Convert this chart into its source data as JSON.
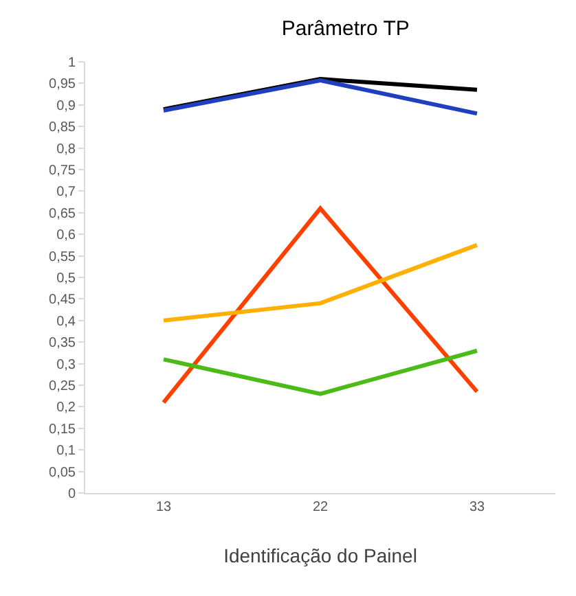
{
  "chart_data": {
    "type": "line",
    "title": "Parâmetro TP",
    "xlabel": "Identificação do Painel",
    "categories": [
      "13",
      "22",
      "33"
    ],
    "series": [
      {
        "color": "#000000",
        "values": [
          0.89,
          0.96,
          0.935
        ]
      },
      {
        "color": "#1f3fbf",
        "values": [
          0.887,
          0.957,
          0.88
        ]
      },
      {
        "color": "#ff4000",
        "values": [
          0.21,
          0.66,
          0.235
        ]
      },
      {
        "color": "#ffb000",
        "values": [
          0.4,
          0.44,
          0.575
        ]
      },
      {
        "color": "#4cbb17",
        "values": [
          0.31,
          0.23,
          0.33
        ]
      }
    ],
    "ylim": [
      0,
      1
    ],
    "yticks": [
      0,
      {
        "value": 0.05,
        "label": "0,05"
      },
      {
        "value": 0.1,
        "label": "0,1"
      },
      {
        "value": 0.15,
        "label": "0,15"
      },
      {
        "value": 0.2,
        "label": "0,2"
      },
      {
        "value": 0.25,
        "label": "0,25"
      },
      {
        "value": 0.3,
        "label": "0,3"
      },
      {
        "value": 0.35,
        "label": "0,35"
      },
      {
        "value": 0.4,
        "label": "0,4"
      },
      {
        "value": 0.45,
        "label": "0,45"
      },
      {
        "value": 0.5,
        "label": "0,5"
      },
      {
        "value": 0.55,
        "label": "0,55"
      },
      {
        "value": 0.6,
        "label": "0,6"
      },
      {
        "value": 0.65,
        "label": "0,65"
      },
      {
        "value": 0.7,
        "label": "0,7"
      },
      {
        "value": 0.75,
        "label": "0,75"
      },
      {
        "value": 0.8,
        "label": "0,8"
      },
      {
        "value": 0.85,
        "label": "0,85"
      },
      {
        "value": 0.9,
        "label": "0,9"
      },
      {
        "value": 0.95,
        "label": "0,95"
      },
      1
    ],
    "grid": false,
    "marker": "none",
    "line_style": "solid"
  }
}
